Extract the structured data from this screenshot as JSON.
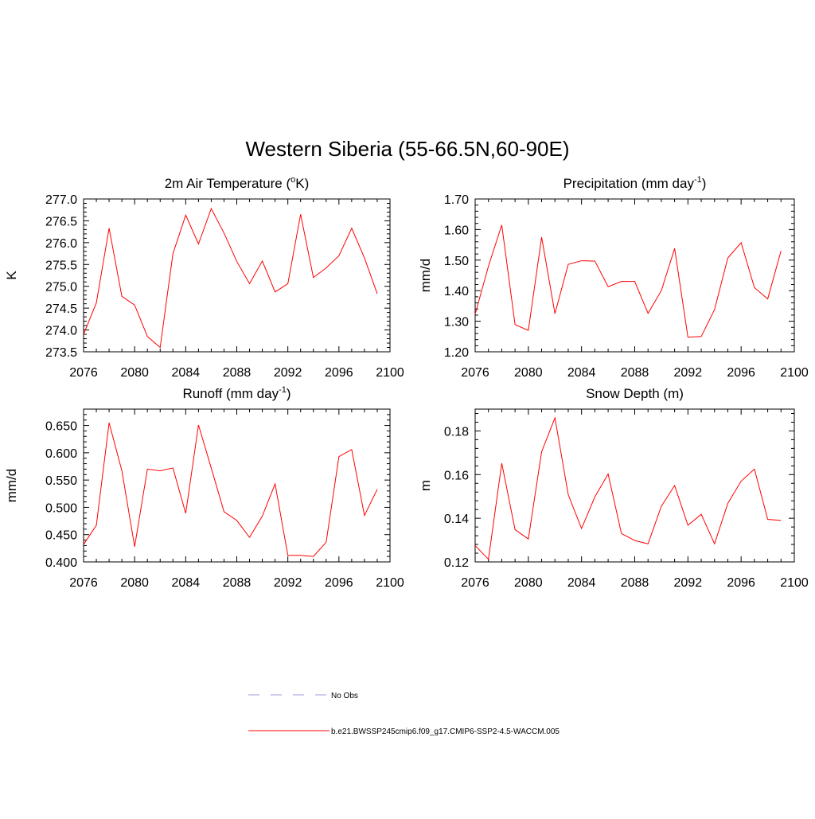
{
  "figure": {
    "title": "Western Siberia (55-66.5N,60-90E)"
  },
  "legend": {
    "entries": [
      {
        "label": "No Obs",
        "color": "#9999dd",
        "style": "dashed"
      },
      {
        "label": "b.e21.BWSSP245cmip6.f09_g17.CMIP6-SSP2-4.5-WACCM.005",
        "color": "#ff0000",
        "style": "solid"
      }
    ]
  },
  "chart_data": [
    {
      "type": "line",
      "title_main": "2m Air Temperature (",
      "title_sup": "o",
      "title_tail": "K)",
      "ylabel": "K",
      "xlim": [
        2076,
        2100
      ],
      "ylim": [
        273.5,
        277.0
      ],
      "x_ticks": [
        "2076",
        "2080",
        "2084",
        "2088",
        "2092",
        "2096",
        "2100"
      ],
      "y_ticks": [
        "273.5",
        "274.0",
        "274.5",
        "275.0",
        "275.5",
        "276.0",
        "276.5",
        "277.0"
      ],
      "x": [
        2076,
        2077,
        2078,
        2079,
        2080,
        2081,
        2082,
        2083,
        2084,
        2085,
        2086,
        2087,
        2088,
        2089,
        2090,
        2091,
        2092,
        2093,
        2094,
        2095,
        2096,
        2097,
        2098,
        2099
      ],
      "series": [
        {
          "color": "#ff0000",
          "values": [
            273.9,
            274.62,
            276.33,
            274.77,
            274.57,
            273.85,
            273.6,
            275.75,
            276.63,
            275.97,
            276.78,
            276.22,
            275.57,
            275.06,
            275.58,
            274.87,
            275.06,
            276.65,
            275.2,
            275.42,
            275.7,
            276.33,
            275.65,
            274.83
          ]
        }
      ]
    },
    {
      "type": "line",
      "title_main": "Precipitation (mm day",
      "title_sup": "-1",
      "title_tail": ")",
      "ylabel": "mm/d",
      "xlim": [
        2076,
        2100
      ],
      "ylim": [
        1.2,
        1.7
      ],
      "x_ticks": [
        "2076",
        "2080",
        "2084",
        "2088",
        "2092",
        "2096",
        "2100"
      ],
      "y_ticks": [
        "1.20",
        "1.30",
        "1.40",
        "1.50",
        "1.60",
        "1.70"
      ],
      "x": [
        2076,
        2077,
        2078,
        2079,
        2080,
        2081,
        2082,
        2083,
        2084,
        2085,
        2086,
        2087,
        2088,
        2089,
        2090,
        2091,
        2092,
        2093,
        2094,
        2095,
        2096,
        2097,
        2098,
        2099
      ],
      "series": [
        {
          "color": "#ff0000",
          "values": [
            1.323,
            1.48,
            1.615,
            1.289,
            1.27,
            1.575,
            1.325,
            1.486,
            1.498,
            1.497,
            1.413,
            1.43,
            1.43,
            1.326,
            1.4,
            1.538,
            1.248,
            1.25,
            1.338,
            1.507,
            1.557,
            1.41,
            1.373,
            1.53
          ]
        }
      ]
    },
    {
      "type": "line",
      "title_main": "Runoff (mm day",
      "title_sup": "-1",
      "title_tail": ")",
      "ylabel": "mm/d",
      "xlim": [
        2076,
        2100
      ],
      "ylim": [
        0.4,
        0.68
      ],
      "x_ticks": [
        "2076",
        "2080",
        "2084",
        "2088",
        "2092",
        "2096",
        "2100"
      ],
      "y_ticks": [
        "0.400",
        "0.450",
        "0.500",
        "0.550",
        "0.600",
        "0.650"
      ],
      "x": [
        2076,
        2077,
        2078,
        2079,
        2080,
        2081,
        2082,
        2083,
        2084,
        2085,
        2086,
        2087,
        2088,
        2089,
        2090,
        2091,
        2092,
        2093,
        2094,
        2095,
        2096,
        2097,
        2098,
        2099
      ],
      "series": [
        {
          "color": "#ff0000",
          "values": [
            0.432,
            0.467,
            0.655,
            0.567,
            0.428,
            0.57,
            0.567,
            0.572,
            0.489,
            0.651,
            0.572,
            0.492,
            0.476,
            0.445,
            0.484,
            0.543,
            0.412,
            0.412,
            0.41,
            0.436,
            0.593,
            0.606,
            0.485,
            0.533
          ]
        }
      ]
    },
    {
      "type": "line",
      "title_main": "Snow Depth (m)",
      "title_sup": "",
      "title_tail": "",
      "ylabel": "m",
      "xlim": [
        2076,
        2100
      ],
      "ylim": [
        0.12,
        0.19
      ],
      "x_ticks": [
        "2076",
        "2080",
        "2084",
        "2088",
        "2092",
        "2096",
        "2100"
      ],
      "y_ticks": [
        "0.12",
        "0.14",
        "0.16",
        "0.18"
      ],
      "x": [
        2076,
        2077,
        2078,
        2079,
        2080,
        2081,
        2082,
        2083,
        2084,
        2085,
        2086,
        2087,
        2088,
        2089,
        2090,
        2091,
        2092,
        2093,
        2094,
        2095,
        2096,
        2097,
        2098,
        2099
      ],
      "series": [
        {
          "color": "#ff0000",
          "values": [
            0.1275,
            0.1212,
            0.1652,
            0.1348,
            0.1305,
            0.1705,
            0.186,
            0.1508,
            0.1353,
            0.1498,
            0.1603,
            0.133,
            0.1298,
            0.1283,
            0.1455,
            0.155,
            0.1368,
            0.1418,
            0.1283,
            0.1468,
            0.157,
            0.1625,
            0.1395,
            0.139
          ]
        }
      ]
    }
  ]
}
